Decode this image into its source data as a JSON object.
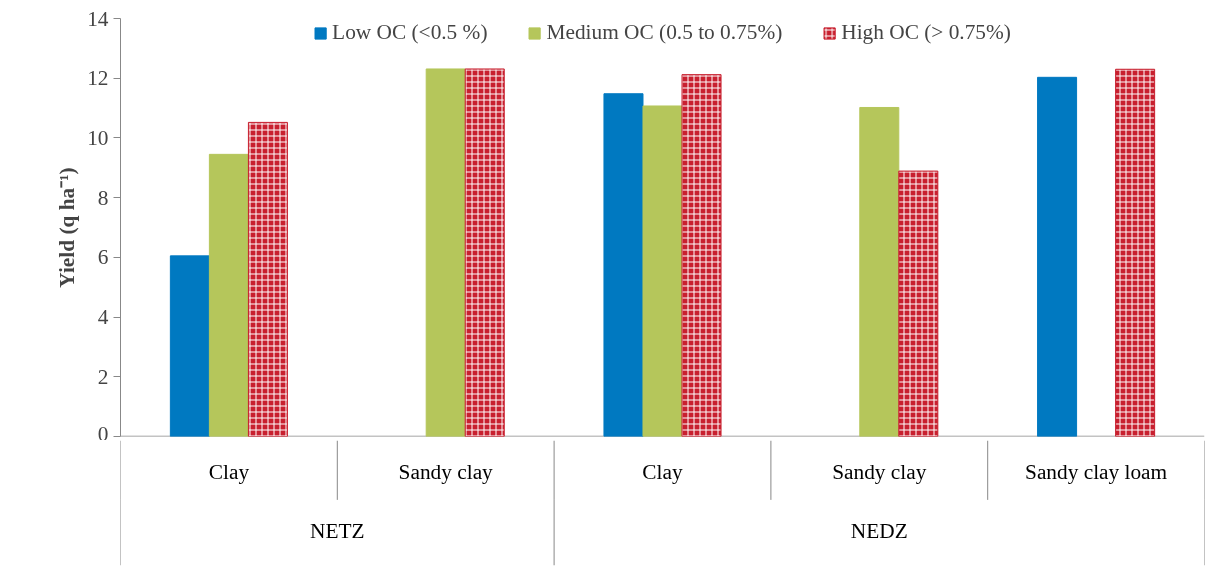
{
  "chart_data": {
    "type": "bar",
    "ylabel": "Yield (q ha⁻¹)",
    "categories": [
      "Clay",
      "Sandy clay",
      "Clay",
      "Sandy clay",
      "Sandy clay loam"
    ],
    "series": [
      {
        "name": "Low OC (<0.5 %)",
        "color": "#0079c1",
        "values": [
          6.05,
          null,
          11.48,
          null,
          12.03
        ]
      },
      {
        "name": "Medium OC (0.5 to 0.75%)",
        "color": "#b5c65b",
        "values": [
          9.45,
          12.31,
          11.07,
          11.02,
          null
        ]
      },
      {
        "name": "High OC (> 0.75%)",
        "color": "#c8202f",
        "values": [
          10.52,
          12.31,
          12.12,
          8.89,
          12.3
        ]
      }
    ],
    "annotations": [
      "NETZ",
      "NEDZ"
    ],
    "ylim": [
      0,
      14
    ],
    "yticks": [
      0,
      2,
      4,
      6,
      8,
      10,
      12,
      14
    ],
    "grid": false,
    "legend": "top"
  }
}
